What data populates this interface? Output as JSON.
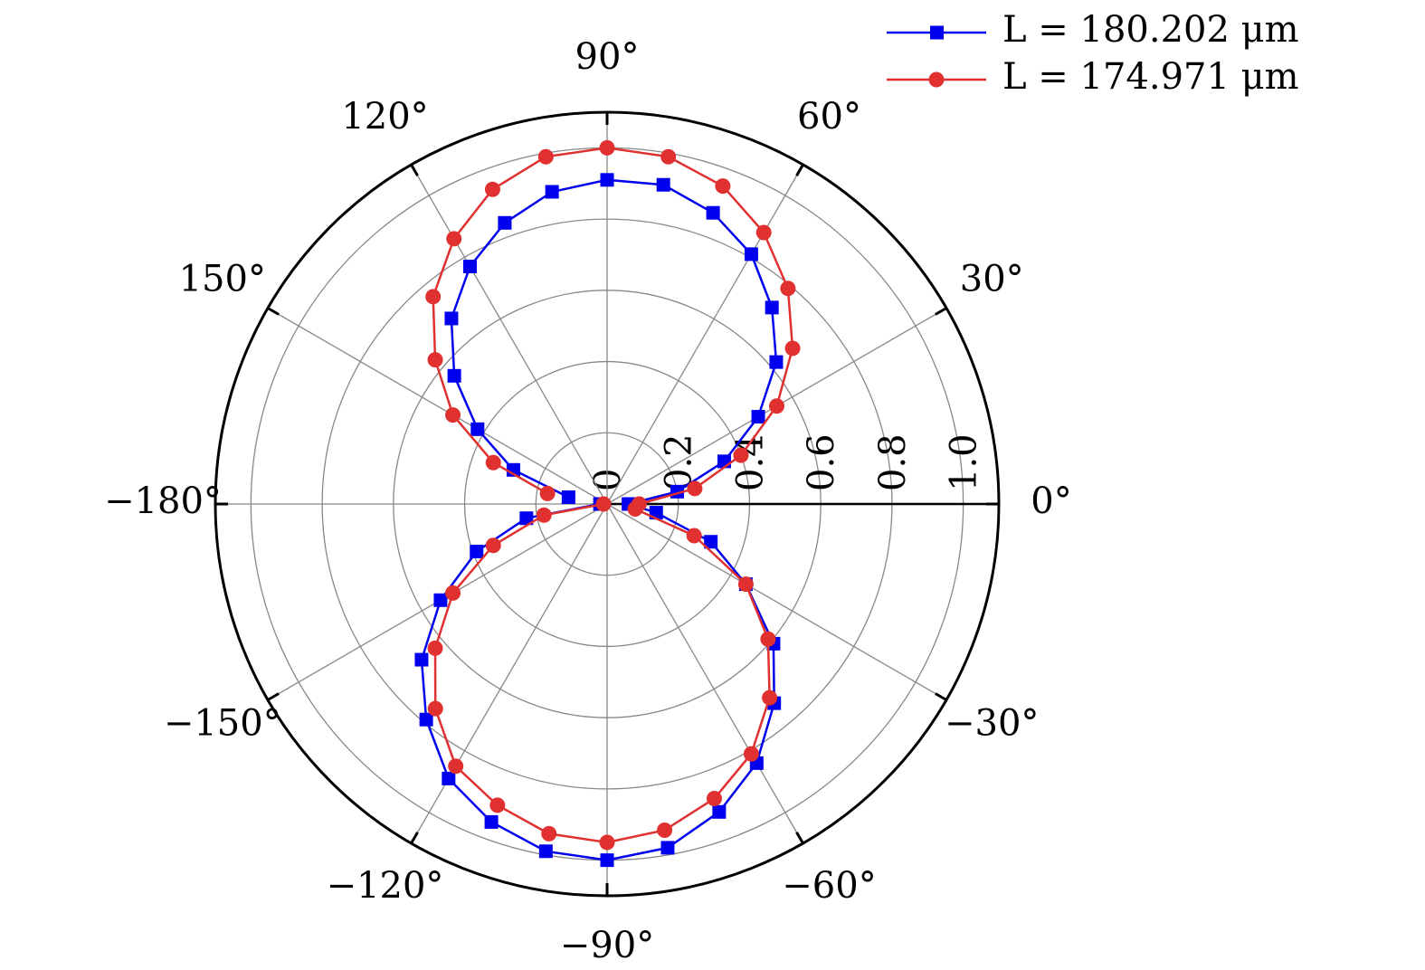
{
  "chart_data": {
    "type": "polar",
    "x": [
      -180,
      -170,
      -160,
      -150,
      -140,
      -130,
      -120,
      -110,
      -100,
      -90,
      -80,
      -70,
      -60,
      -50,
      -40,
      -30,
      -20,
      -10,
      0,
      10,
      20,
      30,
      40,
      50,
      60,
      70,
      80,
      90,
      100,
      110,
      120,
      130,
      140,
      150,
      160,
      170
    ],
    "series": [
      {
        "name": "L = 180.202 μm",
        "color": "#0000ee",
        "marker": "square",
        "values": [
          0.02,
          0.23,
          0.39,
          0.54,
          0.68,
          0.79,
          0.89,
          0.95,
          0.99,
          1.0,
          0.98,
          0.92,
          0.84,
          0.73,
          0.61,
          0.45,
          0.31,
          0.14,
          0.06,
          0.2,
          0.35,
          0.49,
          0.62,
          0.72,
          0.81,
          0.87,
          0.91,
          0.91,
          0.89,
          0.84,
          0.77,
          0.68,
          0.56,
          0.42,
          0.28,
          0.11
        ]
      },
      {
        "name": "L = 174.971 μm",
        "color": "#e03030",
        "marker": "circle",
        "values": [
          0.01,
          0.18,
          0.34,
          0.5,
          0.63,
          0.75,
          0.85,
          0.9,
          0.94,
          0.95,
          0.93,
          0.88,
          0.81,
          0.71,
          0.59,
          0.45,
          0.26,
          0.08,
          0.09,
          0.25,
          0.4,
          0.55,
          0.68,
          0.79,
          0.88,
          0.95,
          0.99,
          1.0,
          0.99,
          0.94,
          0.86,
          0.76,
          0.63,
          0.5,
          0.34,
          0.17
        ]
      }
    ],
    "rlim": [
      0,
      1.1
    ],
    "rticks": [
      0,
      0.2,
      0.4,
      0.6,
      0.8,
      {
        "value": 1,
        "label": "1.0"
      }
    ],
    "thetaticks": [
      {
        "value": 0,
        "label": "0°"
      },
      {
        "value": 30,
        "label": "30°"
      },
      {
        "value": 60,
        "label": "60°"
      },
      {
        "value": 90,
        "label": "90°"
      },
      {
        "value": 120,
        "label": "120°"
      },
      {
        "value": 150,
        "label": "150°"
      },
      {
        "value": -180,
        "label": "−180°"
      },
      {
        "value": -150,
        "label": "−150°"
      },
      {
        "value": -120,
        "label": "−120°"
      },
      {
        "value": -90,
        "label": "−90°"
      },
      {
        "value": -60,
        "label": "−60°"
      },
      {
        "value": -30,
        "label": "−30°"
      }
    ],
    "grid": true,
    "legend": "upper right"
  }
}
